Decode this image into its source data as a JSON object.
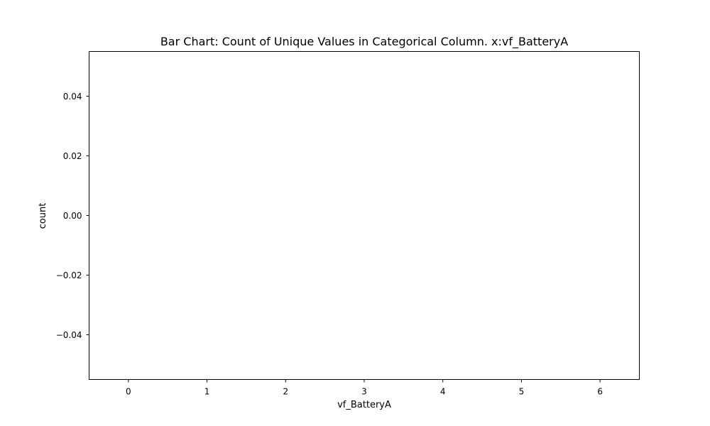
{
  "chart_data": {
    "type": "bar",
    "title": "Bar Chart: Count of Unique Values in Categorical Column. x:vf_BatteryA",
    "xlabel": "vf_BatteryA",
    "ylabel": "count",
    "categories": [
      "0",
      "1",
      "2",
      "3",
      "4",
      "5",
      "6"
    ],
    "values": [
      0,
      0,
      0,
      0,
      0,
      0,
      0
    ],
    "xlim": [
      -0.5,
      6.5
    ],
    "ylim": [
      -0.055,
      0.055
    ],
    "yticks": [
      -0.04,
      -0.02,
      0.0,
      0.02,
      0.04
    ],
    "ytick_labels": [
      "−0.04",
      "−0.02",
      "0.00",
      "0.02",
      "0.04"
    ],
    "grid": false,
    "bar_color": "#1f77b4"
  }
}
